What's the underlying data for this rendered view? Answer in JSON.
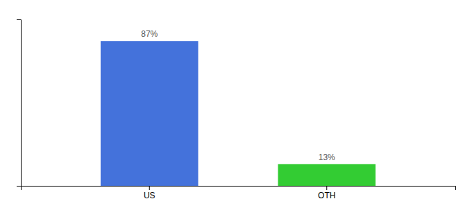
{
  "chart_data": {
    "type": "bar",
    "categories": [
      "US",
      "OTH"
    ],
    "values": [
      87,
      13
    ],
    "value_labels": [
      "87%",
      "13%"
    ],
    "colors": [
      "#4472db",
      "#33cc33"
    ],
    "ylim": [
      0,
      100
    ],
    "data_labels": true,
    "tick_labels": "x"
  }
}
